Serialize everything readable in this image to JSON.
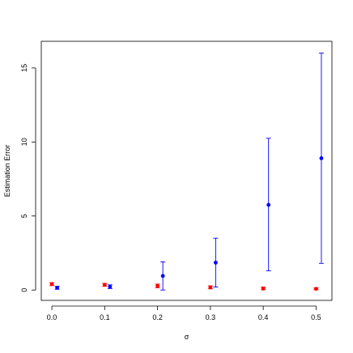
{
  "chart_data": {
    "type": "scatter",
    "title": "",
    "xlabel": "σ",
    "ylabel": "Estimation Error",
    "xlim": [
      -0.02,
      0.53
    ],
    "ylim": [
      -0.7,
      16.8
    ],
    "xticks": [
      "0.0",
      "0.1",
      "0.2",
      "0.3",
      "0.4",
      "0.5"
    ],
    "xtick_values": [
      0.0,
      0.1,
      0.2,
      0.3,
      0.4,
      0.5
    ],
    "yticks": [
      "0",
      "5",
      "10",
      "15"
    ],
    "ytick_values": [
      0,
      5,
      10,
      15
    ],
    "grid": false,
    "error_bars": true,
    "series": [
      {
        "color": "#ff0000",
        "points": [
          {
            "x": 0.0,
            "y": 0.4,
            "lo": 0.3,
            "hi": 0.5
          },
          {
            "x": 0.1,
            "y": 0.35,
            "lo": 0.25,
            "hi": 0.45
          },
          {
            "x": 0.2,
            "y": 0.28,
            "lo": 0.15,
            "hi": 0.4
          },
          {
            "x": 0.3,
            "y": 0.18,
            "lo": 0.08,
            "hi": 0.28
          },
          {
            "x": 0.4,
            "y": 0.1,
            "lo": 0.02,
            "hi": 0.2
          },
          {
            "x": 0.5,
            "y": 0.08,
            "lo": 0.02,
            "hi": 0.14
          }
        ]
      },
      {
        "color": "#0000ff",
        "points": [
          {
            "x": 0.01,
            "y": 0.15,
            "lo": 0.05,
            "hi": 0.25
          },
          {
            "x": 0.11,
            "y": 0.22,
            "lo": 0.1,
            "hi": 0.35
          },
          {
            "x": 0.21,
            "y": 0.95,
            "lo": 0.0,
            "hi": 1.9
          },
          {
            "x": 0.31,
            "y": 1.85,
            "lo": 0.2,
            "hi": 3.5
          },
          {
            "x": 0.41,
            "y": 5.75,
            "lo": 1.3,
            "hi": 10.25
          },
          {
            "x": 0.51,
            "y": 8.9,
            "lo": 1.8,
            "hi": 16.0
          }
        ]
      }
    ]
  }
}
